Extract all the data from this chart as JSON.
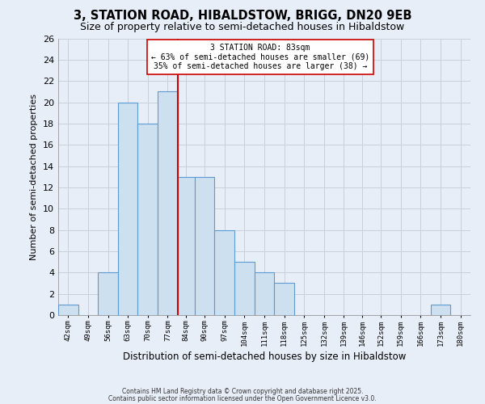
{
  "title": "3, STATION ROAD, HIBALDSTOW, BRIGG, DN20 9EB",
  "subtitle": "Size of property relative to semi-detached houses in Hibaldstow",
  "xlabel": "Distribution of semi-detached houses by size in Hibaldstow",
  "ylabel": "Number of semi-detached properties",
  "bins": [
    42,
    49,
    56,
    63,
    70,
    77,
    84,
    90,
    97,
    104,
    111,
    118,
    125,
    132,
    139,
    146,
    152,
    159,
    166,
    173,
    180
  ],
  "bin_labels": [
    "42sqm",
    "49sqm",
    "56sqm",
    "63sqm",
    "70sqm",
    "77sqm",
    "84sqm",
    "90sqm",
    "97sqm",
    "104sqm",
    "111sqm",
    "118sqm",
    "125sqm",
    "132sqm",
    "139sqm",
    "146sqm",
    "152sqm",
    "159sqm",
    "166sqm",
    "173sqm",
    "180sqm"
  ],
  "counts": [
    1,
    0,
    4,
    20,
    18,
    21,
    13,
    13,
    8,
    5,
    4,
    3,
    0,
    0,
    0,
    0,
    0,
    0,
    0,
    1,
    0
  ],
  "bar_color": "#cde0f0",
  "bar_edge_color": "#5b9bd5",
  "redline_x": 84,
  "annotation_line1": "3 STATION ROAD: 83sqm",
  "annotation_line2": "← 63% of semi-detached houses are smaller (69)",
  "annotation_line3": "35% of semi-detached houses are larger (38) →",
  "ylim": [
    0,
    26
  ],
  "yticks": [
    0,
    2,
    4,
    6,
    8,
    10,
    12,
    14,
    16,
    18,
    20,
    22,
    24,
    26
  ],
  "background_color": "#e8eef8",
  "plot_bg_color": "#e8eef8",
  "footer1": "Contains HM Land Registry data © Crown copyright and database right 2025.",
  "footer2": "Contains public sector information licensed under the Open Government Licence v3.0.",
  "title_fontsize": 10.5,
  "subtitle_fontsize": 9,
  "grid_color": "#c8d0dc"
}
